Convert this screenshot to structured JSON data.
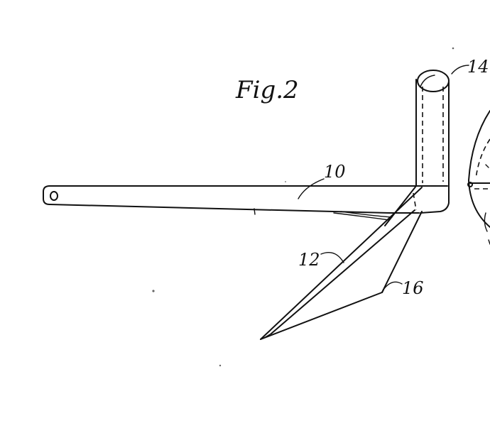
{
  "figure": {
    "title": "Fig.2"
  },
  "reference_numerals": {
    "beam": "10",
    "brace": "12",
    "post": "14",
    "blade": "16"
  }
}
